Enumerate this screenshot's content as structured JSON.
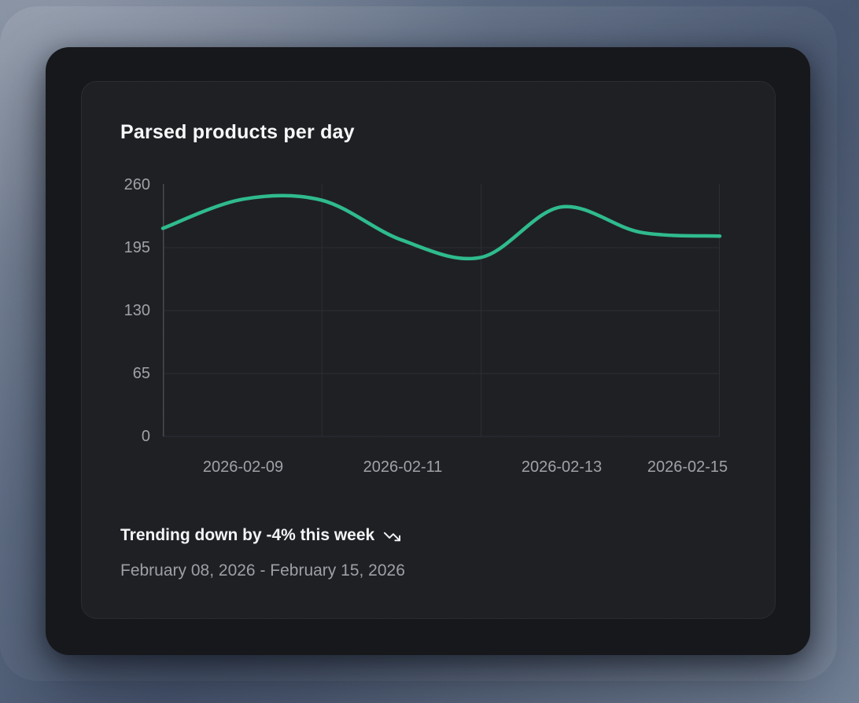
{
  "card": {
    "title": "Parsed products per day",
    "footer": {
      "trend_label": "Trending down by -4% this week",
      "trend_icon": "trending-down-icon",
      "date_range": "February 08, 2026 - February 15, 2026"
    }
  },
  "colors": {
    "background_slate": "#5d6b82",
    "frame_bg": "#16171b",
    "card_bg": "#1e1f23",
    "card_border": "#2a2b30",
    "grid_line": "#2c2d32",
    "axis_line": "#47484e",
    "tick_text": "#9da0a6",
    "title_text": "#f7f8f8",
    "muted_text": "#9b9ea5",
    "line_color": "#2eba8b"
  },
  "chart_data": {
    "type": "line",
    "title": "Parsed products per day",
    "x": [
      "2026-02-08",
      "2026-02-09",
      "2026-02-10",
      "2026-02-11",
      "2026-02-12",
      "2026-02-13",
      "2026-02-14",
      "2026-02-15"
    ],
    "series": [
      {
        "name": "Parsed products",
        "values": [
          215,
          245,
          244,
          203,
          185,
          237,
          211,
          207
        ]
      }
    ],
    "xlabel": "",
    "ylabel": "",
    "ylim": [
      0,
      260
    ],
    "y_ticks": [
      "260",
      "195",
      "130",
      "65",
      "0"
    ],
    "x_tick_labels": [
      "2026-02-09",
      "2026-02-11",
      "2026-02-13",
      "2026-02-15"
    ],
    "grid": true,
    "legend": false,
    "smooth": true,
    "line_color": "#2eba8b",
    "line_width": 4.5
  }
}
